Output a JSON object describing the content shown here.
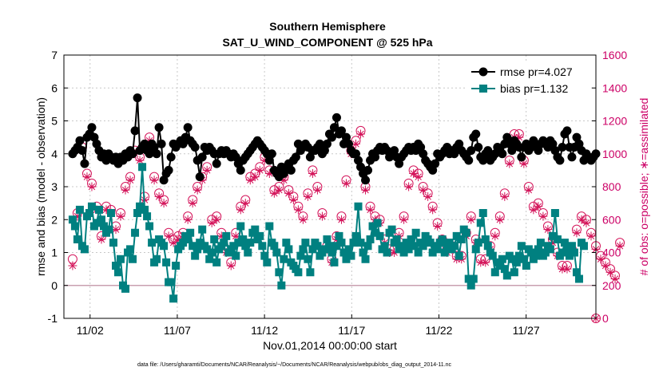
{
  "chart_data": {
    "type": "line",
    "title": "Southern Hemisphere",
    "subtitle": "SAT_U_WIND_COMPONENT @ 525 hPa",
    "xlabel": "Nov.01,2014 00:00:00 start",
    "ylabel": "rmse and bias (model - observation)",
    "ylabel_right": "# of obs: o=possible; ∗=assimilated",
    "footnote": "data file: /Users/gharamti/Documents/NCAR/Reanalysis/~/Documents/NCAR/Reanalysis/webpub/obs_diag_output_2014-11.nc",
    "xlim": [
      0.5,
      31.0
    ],
    "ylim": [
      -1,
      7
    ],
    "ylim_right": [
      0,
      1600
    ],
    "x_ticks": [
      2,
      7,
      12,
      17,
      22,
      27
    ],
    "x_tick_labels": [
      "11/02",
      "11/07",
      "11/12",
      "11/17",
      "11/22",
      "11/27"
    ],
    "y_ticks": [
      -1,
      0,
      1,
      2,
      3,
      4,
      5,
      6,
      7
    ],
    "y_tick_labels": [
      "-1",
      "0",
      "1",
      "2",
      "3",
      "4",
      "5",
      "6",
      "7"
    ],
    "y_right_ticks": [
      0,
      200,
      400,
      600,
      800,
      1000,
      1200,
      1400,
      1600
    ],
    "y_right_tick_labels": [
      "0",
      "200",
      "400",
      "600",
      "800",
      "1000",
      "1200",
      "1400",
      "1600"
    ],
    "grid": true,
    "legend": "top-right",
    "colors": {
      "rmse": "#000000",
      "bias": "#008080",
      "obs": "#d4145a",
      "zero_line": "#c8a0b0"
    },
    "series": [
      {
        "name": "rmse pr=4.027",
        "values": [
          4.0,
          4.1,
          4.2,
          4.4,
          4.1,
          3.7,
          4.5,
          4.6,
          4.8,
          4.5,
          4.3,
          4.1,
          3.9,
          4.0,
          3.8,
          4.0,
          3.9,
          3.8,
          3.9,
          3.7,
          3.9,
          3.8,
          4.0,
          3.9,
          4.1,
          4.0,
          4.7,
          5.7,
          4.1,
          4.2,
          4.3,
          4.1,
          4.0,
          4.3,
          4.2,
          4.0,
          4.8,
          4.3,
          3.2,
          3.4,
          3.5,
          3.9,
          4.3,
          4.2,
          4.3,
          4.4,
          4.3,
          4.5,
          4.8,
          4.4,
          4.3,
          4.2,
          3.8,
          3.3,
          3.9,
          4.2,
          4.1,
          4.2,
          4.1,
          4.0,
          3.7,
          4.0,
          4.1,
          4.0,
          4.1,
          4.0,
          3.9,
          4.0,
          3.9,
          3.7,
          3.5,
          3.8,
          3.9,
          4.0,
          4.1,
          4.2,
          4.3,
          4.4,
          4.3,
          4.2,
          4.1,
          4.0,
          3.8,
          4.0,
          3.5,
          3.4,
          3.3,
          3.6,
          3.4,
          3.6,
          3.7,
          3.5,
          3.8,
          3.9,
          4.3,
          4.1,
          4.2,
          4.3,
          4.2,
          3.9,
          4.1,
          4.1,
          4.2,
          4.3,
          4.0,
          4.1,
          4.3,
          4.6,
          4.5,
          4.8,
          5.1,
          4.6,
          4.7,
          4.3,
          4.5,
          4.3,
          4.1,
          4.0,
          4.0,
          3.8,
          3.6,
          3.4,
          3.2,
          3.5,
          3.8,
          4.0,
          3.9,
          4.1,
          4.2,
          4.1,
          4.2,
          4.1,
          3.9,
          4.0,
          4.1,
          3.9,
          3.7,
          3.9,
          4.0,
          4.1,
          4.2,
          4.1,
          4.2,
          4.1,
          4.3,
          4.2,
          4.0,
          3.8,
          3.7,
          3.6,
          3.5,
          3.7,
          4.0,
          3.9,
          4.0,
          4.1,
          4.2,
          4.0,
          4.1,
          4.0,
          4.2,
          4.3,
          4.1,
          4.0,
          3.9,
          3.8,
          4.1,
          4.5,
          4.6,
          4.2,
          3.9,
          3.8,
          4.0,
          4.1,
          3.8,
          3.9,
          4.0,
          4.2,
          4.1,
          4.0,
          4.3,
          4.5,
          4.3,
          4.1,
          4.4,
          4.3,
          4.2,
          3.9,
          4.2,
          4.3,
          4.1,
          4.2,
          4.4,
          4.3,
          4.1,
          4.3,
          4.4,
          4.3,
          4.2,
          4.4,
          4.3,
          4.1,
          3.9,
          3.8,
          4.2,
          4.6,
          4.7,
          4.2,
          3.9,
          4.2,
          4.5,
          4.3,
          4.1,
          3.8,
          4.0,
          3.9,
          3.8,
          3.9,
          4.0
        ]
      },
      {
        "name": "bias pr=1.132",
        "values": [
          2.0,
          1.8,
          1.4,
          2.3,
          1.2,
          1.1,
          2.1,
          2.2,
          2.4,
          1.8,
          1.9,
          2.3,
          2.0,
          1.8,
          1.6,
          1.7,
          2.2,
          1.3,
          0.6,
          0.4,
          0.8,
          0.0,
          -0.1,
          1.0,
          1.1,
          0.8,
          1.6,
          2.2,
          2.4,
          3.6,
          2.3,
          2.1,
          1.8,
          1.3,
          0.7,
          0.8,
          1.4,
          1.3,
          1.2,
          0.7,
          0.1,
          0.1,
          -0.4,
          0.6,
          1.1,
          1.2,
          1.3,
          1.5,
          1.4,
          1.6,
          1.2,
          0.9,
          1.1,
          1.3,
          1.7,
          1.2,
          1.1,
          0.8,
          1.0,
          1.4,
          0.7,
          1.1,
          1.2,
          1.3,
          1.5,
          1.0,
          1.1,
          1.2,
          0.9,
          1.3,
          1.8,
          1.4,
          1.2,
          1.0,
          1.3,
          1.6,
          1.7,
          1.4,
          1.5,
          1.2,
          0.9,
          0.7,
          1.8,
          1.3,
          1.2,
          1.0,
          0.4,
          0.0,
          0.8,
          1.3,
          1.1,
          0.7,
          0.6,
          0.5,
          0.4,
          0.9,
          1.1,
          1.3,
          0.8,
          0.4,
          1.1,
          1.3,
          1.2,
          0.9,
          1.0,
          1.1,
          1.4,
          1.2,
          1.0,
          0.7,
          1.2,
          1.5,
          1.3,
          1.0,
          0.8,
          1.1,
          0.9,
          1.3,
          1.5,
          2.4,
          1.3,
          1.0,
          0.8,
          1.2,
          1.4,
          1.8,
          1.6,
          1.9,
          1.5,
          1.1,
          1.2,
          1.0,
          1.6,
          1.7,
          1.3,
          1.4,
          1.1,
          1.2,
          1.0,
          1.3,
          1.1,
          1.4,
          1.2,
          1.6,
          1.0,
          1.3,
          1.2,
          1.5,
          1.4,
          1.3,
          1.0,
          1.2,
          1.1,
          1.3,
          1.4,
          1.0,
          1.2,
          1.3,
          1.1,
          1.2,
          1.5,
          0.9,
          1.4,
          1.7,
          1.6,
          0.2,
          0.0,
          0.2,
          1.1,
          1.3,
          1.9,
          2.2,
          1.4,
          1.2,
          1.0,
          0.9,
          0.4,
          0.7,
          0.6,
          0.8,
          0.5,
          0.3,
          0.9,
          0.8,
          0.4,
          0.7,
          0.9,
          1.2,
          0.8,
          0.6,
          1.1,
          1.0,
          0.8,
          0.9,
          1.1,
          1.3,
          0.9,
          1.0,
          1.2,
          1.1,
          1.5,
          2.2,
          1.4,
          0.9,
          1.0,
          1.3,
          1.1,
          0.9,
          1.2,
          1.0,
          0.4,
          0.2,
          1.3,
          1.2
        ]
      },
      {
        "name": "possible",
        "axis": "right",
        "values": [
          360,
          760,
          640,
          540,
          1040,
          700,
          880,
          860,
          820,
          800,
          680,
          600,
          500,
          440,
          680,
          720,
          660,
          640,
          560,
          680,
          640,
          760,
          800,
          840,
          860,
          700,
          1020,
          1000,
          980,
          860,
          740,
          680,
          1100,
          940,
          860,
          800,
          760,
          740,
          720,
          600,
          520,
          580,
          480,
          540,
          500,
          480,
          520,
          580,
          620,
          640,
          720,
          840,
          800,
          800,
          860,
          960,
          920,
          820,
          600,
          640,
          620,
          560,
          520,
          420,
          420,
          400,
          340,
          460,
          520,
          640,
          680,
          780,
          720,
          760,
          860,
          880,
          880,
          900,
          920,
          1000,
          980,
          960,
          900,
          820,
          780,
          760,
          800,
          820,
          860,
          820,
          780,
          800,
          740,
          720,
          680,
          640,
          620,
          660,
          760,
          800,
          900,
          820,
          800,
          740,
          640,
          540,
          440,
          400,
          360,
          440,
          500,
          560,
          620,
          800,
          840,
          860,
          1020,
          1060,
          1080,
          1180,
          1140,
          940,
          800,
          720,
          680,
          660,
          620,
          640,
          600,
          540,
          480,
          440,
          420,
          460,
          420,
          480,
          520,
          560,
          620,
          700,
          820,
          860,
          900,
          920,
          880,
          840,
          800,
          780,
          760,
          740,
          680,
          620,
          580,
          520,
          480,
          440,
          420,
          460,
          440,
          420,
          380,
          340,
          380,
          440,
          520,
          580,
          620,
          560,
          480,
          420,
          360,
          340,
          360,
          400,
          440,
          480,
          520,
          560,
          620,
          680,
          760,
          860,
          960,
          1040,
          1120,
          1160,
          1120,
          1040,
          960,
          880,
          800,
          720,
          680,
          660,
          700,
          680,
          640,
          600,
          560,
          520,
          480,
          440,
          400,
          360,
          320,
          300,
          320,
          360,
          420,
          480,
          540,
          580,
          620,
          640,
          600,
          560,
          520,
          480,
          440,
          400,
          380,
          360,
          340,
          320,
          300,
          280,
          260,
          400,
          460
        ]
      },
      {
        "name": "assimilated",
        "axis": "right",
        "values": [
          320,
          740,
          620,
          520,
          1020,
          680,
          860,
          840,
          800,
          780,
          660,
          580,
          480,
          420,
          660,
          700,
          640,
          620,
          540,
          660,
          620,
          740,
          780,
          820,
          840,
          680,
          1000,
          980,
          960,
          840,
          720,
          660,
          1080,
          920,
          840,
          780,
          740,
          720,
          700,
          580,
          500,
          560,
          460,
          520,
          480,
          460,
          500,
          560,
          600,
          620,
          700,
          820,
          780,
          780,
          840,
          940,
          900,
          800,
          580,
          620,
          600,
          540,
          500,
          400,
          400,
          380,
          320,
          440,
          500,
          620,
          660,
          760,
          700,
          740,
          840,
          860,
          860,
          880,
          900,
          980,
          960,
          940,
          880,
          800,
          760,
          740,
          780,
          800,
          840,
          800,
          760,
          780,
          720,
          700,
          660,
          620,
          600,
          640,
          740,
          780,
          880,
          800,
          780,
          720,
          620,
          520,
          420,
          380,
          340,
          420,
          480,
          540,
          600,
          780,
          820,
          840,
          1000,
          1040,
          1060,
          1160,
          1120,
          920,
          780,
          700,
          660,
          640,
          600,
          620,
          580,
          520,
          460,
          420,
          400,
          440,
          400,
          460,
          500,
          540,
          600,
          680,
          800,
          840,
          880,
          900,
          860,
          820,
          780,
          760,
          740,
          720,
          660,
          600,
          560,
          500,
          460,
          420,
          400,
          440,
          420,
          400,
          360,
          320,
          360,
          420,
          500,
          560,
          600,
          540,
          460,
          400,
          340,
          320,
          340,
          380,
          420,
          460,
          500,
          540,
          600,
          660,
          740,
          840,
          940,
          1020,
          1100,
          1140,
          1100,
          1020,
          940,
          860,
          780,
          700,
          660,
          640,
          680,
          660,
          620,
          580,
          540,
          500,
          460,
          420,
          380,
          340,
          300,
          280,
          300,
          340,
          400,
          460,
          520,
          560,
          600,
          620,
          580,
          540,
          500,
          460,
          420,
          380,
          360,
          340,
          320,
          300,
          280,
          260,
          240,
          380,
          440
        ]
      }
    ]
  }
}
